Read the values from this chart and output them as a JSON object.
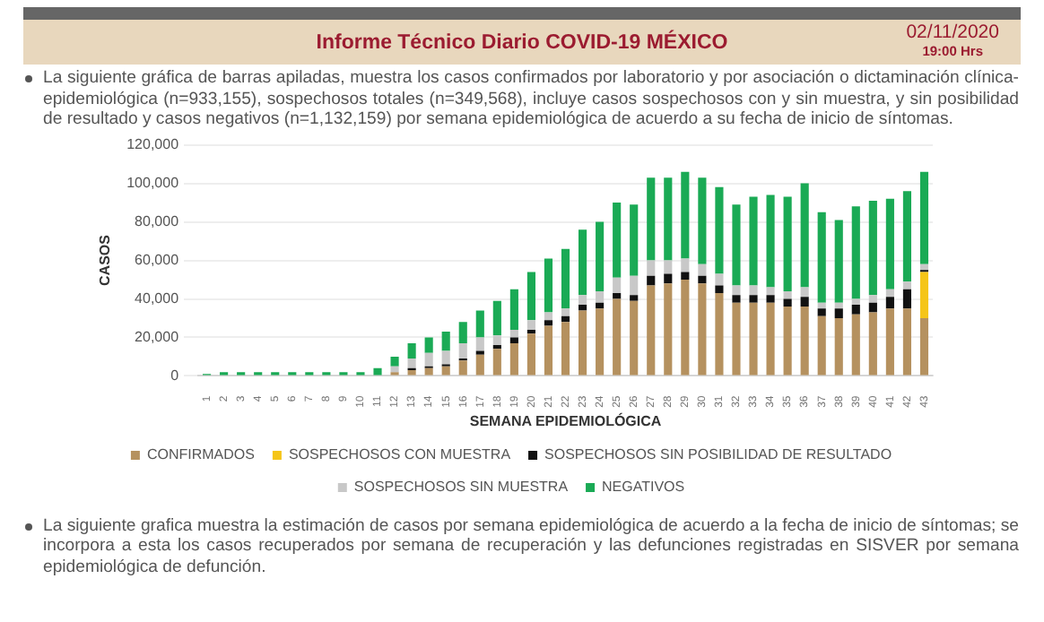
{
  "chart_data": {
    "type": "bar",
    "title": "Informe Técnico Diario COVID-19 MÉXICO",
    "annotations": [
      "02/11/2020",
      "19:00 Hrs",
      "La siguiente gráfica de barras apiladas, muestra los casos confirmados por laboratorio y por asociación o dictaminación clínica-epidemiológica (n=933,155), sospechosos totales (n=349,568), incluye casos sospechosos con y sin muestra, y sin posibilidad de resultado y casos negativos (n=1,132,159) por semana epidemiológica de acuerdo a su fecha de inicio de síntomas.",
      "La siguiente grafica muestra la estimación de casos por semana epidemiológica de acuerdo a la fecha de inicio de síntomas; se incorpora a esta los casos recuperados por semana de recuperación y las defunciones registradas en SISVER por semana epidemiológica de defunción."
    ],
    "xlabel": "SEMANA EPIDEMIOLÓGICA",
    "ylabel": "CASOS",
    "categories": [
      "1",
      "2",
      "3",
      "4",
      "5",
      "6",
      "7",
      "8",
      "9",
      "10",
      "11",
      "12",
      "13",
      "14",
      "15",
      "16",
      "17",
      "18",
      "19",
      "20",
      "21",
      "22",
      "23",
      "24",
      "25",
      "26",
      "27",
      "28",
      "29",
      "30",
      "31",
      "32",
      "33",
      "34",
      "35",
      "36",
      "37",
      "38",
      "39",
      "40",
      "41",
      "42",
      "43"
    ],
    "stacked": true,
    "series": [
      {
        "name": "CONFIRMADOS",
        "color": "#b5915f",
        "values": [
          0,
          0,
          0,
          0,
          0,
          0,
          0,
          0,
          0,
          0,
          0,
          2000,
          3000,
          4000,
          5000,
          8000,
          11000,
          14000,
          17000,
          22000,
          26000,
          28000,
          34000,
          35000,
          40000,
          39000,
          47000,
          48000,
          50000,
          48000,
          43000,
          38000,
          38000,
          38000,
          36000,
          36000,
          31000,
          30000,
          32000,
          33000,
          35000,
          35000,
          30000
        ]
      },
      {
        "name": "SOSPECHOSOS CON MUESTRA",
        "color": "#f5c518",
        "values": [
          0,
          0,
          0,
          0,
          0,
          0,
          0,
          0,
          0,
          0,
          0,
          0,
          0,
          0,
          0,
          0,
          0,
          0,
          0,
          0,
          0,
          0,
          0,
          0,
          0,
          0,
          0,
          0,
          0,
          0,
          0,
          0,
          0,
          0,
          0,
          0,
          0,
          0,
          0,
          0,
          0,
          0,
          24000
        ]
      },
      {
        "name": "SOSPECHOSOS SIN POSIBILIDAD DE RESULTADO",
        "color": "#111111",
        "values": [
          0,
          0,
          0,
          0,
          0,
          0,
          0,
          0,
          0,
          0,
          0,
          0,
          1000,
          1000,
          1000,
          1000,
          2000,
          2000,
          3000,
          2000,
          3000,
          3000,
          3000,
          3000,
          3000,
          3000,
          5000,
          5000,
          4000,
          4000,
          4000,
          4000,
          4000,
          4000,
          4000,
          5000,
          4000,
          5000,
          5000,
          5000,
          6000,
          10000,
          1000
        ]
      },
      {
        "name": "SOSPECHOSOS SIN MUESTRA",
        "color": "#c8c8c8",
        "values": [
          0,
          0,
          0,
          0,
          0,
          0,
          0,
          0,
          0,
          0,
          0,
          3000,
          5000,
          7000,
          7000,
          8000,
          7000,
          5000,
          4000,
          5000,
          4000,
          4000,
          5000,
          6000,
          8000,
          10000,
          8000,
          7000,
          7000,
          6000,
          6000,
          5000,
          5000,
          4000,
          4000,
          5000,
          3000,
          3000,
          3000,
          4000,
          4000,
          4000,
          3000
        ]
      },
      {
        "name": "NEGATIVOS",
        "color": "#1aaa55",
        "values": [
          1000,
          2000,
          2000,
          2000,
          2000,
          2000,
          2000,
          2000,
          2000,
          2000,
          4000,
          5000,
          8000,
          8000,
          10000,
          11000,
          14000,
          18000,
          21000,
          25000,
          28000,
          31000,
          34000,
          36000,
          39000,
          37000,
          43000,
          43000,
          45000,
          45000,
          45000,
          42000,
          46000,
          48000,
          49000,
          54000,
          47000,
          43000,
          48000,
          49000,
          47000,
          47000,
          48000
        ]
      }
    ],
    "ylim": [
      0,
      120000
    ],
    "yticks": [
      0,
      {
        "value": 20000,
        "label": "20,000"
      },
      {
        "value": 40000,
        "label": "40,000"
      },
      {
        "value": 60000,
        "label": "60,000"
      },
      {
        "value": 80000,
        "label": "80,000"
      },
      {
        "value": 100000,
        "label": "100,000"
      },
      {
        "value": 120000,
        "label": "120,000"
      }
    ],
    "grid": "y",
    "legend": "bottom"
  }
}
